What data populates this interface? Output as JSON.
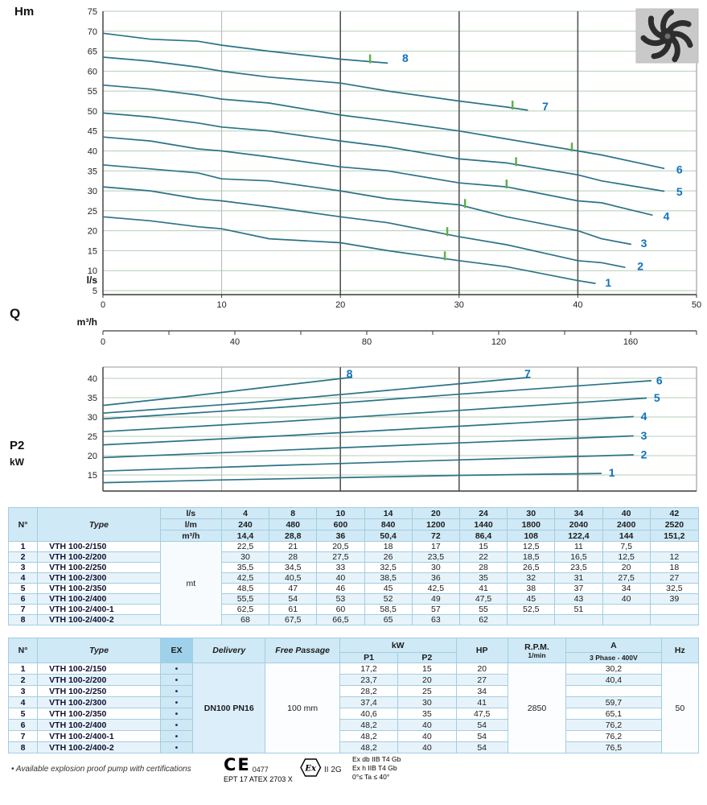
{
  "chart_data": [
    {
      "type": "line",
      "name": "head-flow-curves",
      "ylabel": "Hm",
      "q_label": "Q",
      "xlabel_primary": "l/s",
      "xlabel_secondary": "m³/h",
      "xlim": [
        0,
        50
      ],
      "ylim": [
        5,
        75
      ],
      "ytick_step": 5,
      "xticks": [
        0,
        10,
        20,
        30,
        40,
        50
      ],
      "x2lim": [
        0,
        180
      ],
      "xticks_secondary": [
        0,
        40,
        80,
        120,
        160
      ],
      "grid": true,
      "legend_position": "on-curve-right",
      "curve_color": "#2a7385",
      "grid_color": "#b5cdb5",
      "label_color": "#1173ba",
      "marker_color": "#5fb04c",
      "series": [
        {
          "name": "1",
          "x": [
            0,
            4,
            8,
            10,
            14,
            20,
            24,
            30,
            34,
            40,
            41.5
          ],
          "y": [
            23.5,
            22.5,
            21,
            20.5,
            18,
            17,
            15,
            12.5,
            11,
            7.5,
            6.8
          ],
          "label_x": 42.3,
          "label_y": 7.0
        },
        {
          "name": "2",
          "x": [
            0,
            4,
            8,
            10,
            14,
            20,
            24,
            30,
            34,
            40,
            42,
            44
          ],
          "y": [
            31,
            30,
            28,
            27.5,
            26,
            23.5,
            22,
            18.5,
            16.5,
            12.5,
            12,
            10.8
          ],
          "label_x": 45.0,
          "label_y": 11.2
        },
        {
          "name": "3",
          "x": [
            0,
            4,
            8,
            10,
            14,
            20,
            24,
            30,
            34,
            40,
            42,
            44.5
          ],
          "y": [
            36.5,
            35.5,
            34.5,
            33,
            32.5,
            30,
            28,
            26.5,
            23.5,
            20,
            18,
            16.6
          ],
          "label_x": 45.3,
          "label_y": 16.9
        },
        {
          "name": "4",
          "x": [
            0,
            4,
            8,
            10,
            14,
            20,
            24,
            30,
            34,
            40,
            42,
            46.3
          ],
          "y": [
            43.5,
            42.5,
            40.5,
            40,
            38.5,
            36,
            35,
            32,
            31,
            27.5,
            27,
            23.9
          ],
          "label_x": 47.2,
          "label_y": 23.7
        },
        {
          "name": "5",
          "x": [
            0,
            4,
            8,
            10,
            14,
            20,
            24,
            30,
            34,
            40,
            42,
            47.3
          ],
          "y": [
            49.5,
            48.5,
            47,
            46,
            45,
            42.5,
            41,
            38,
            37,
            34,
            32.5,
            29.9
          ],
          "label_x": 48.3,
          "label_y": 29.8
        },
        {
          "name": "6",
          "x": [
            0,
            4,
            8,
            10,
            14,
            20,
            24,
            30,
            34,
            40,
            42,
            47.3
          ],
          "y": [
            56.5,
            55.5,
            54,
            53,
            52,
            49,
            47.5,
            45,
            43,
            40,
            39,
            35.6
          ],
          "label_x": 48.3,
          "label_y": 35.4
        },
        {
          "name": "7",
          "x": [
            0,
            4,
            8,
            10,
            14,
            20,
            24,
            30,
            34,
            35.8
          ],
          "y": [
            63.5,
            62.5,
            61,
            60,
            58.5,
            57,
            55,
            52.5,
            51,
            50.2
          ],
          "label_x": 37.0,
          "label_y": 51.2
        },
        {
          "name": "8",
          "x": [
            0,
            4,
            8,
            10,
            14,
            20,
            24
          ],
          "y": [
            69.5,
            68,
            67.5,
            66.5,
            65,
            63,
            62
          ],
          "label_x": 25.2,
          "label_y": 63.3
        }
      ],
      "bep_markers": [
        {
          "series": "1",
          "x": 28.8
        },
        {
          "series": "2",
          "x": 29.0
        },
        {
          "series": "3",
          "x": 30.5
        },
        {
          "series": "4",
          "x": 34.0
        },
        {
          "series": "5",
          "x": 34.8
        },
        {
          "series": "6",
          "x": 39.5
        },
        {
          "series": "7",
          "x": 34.5
        },
        {
          "series": "8",
          "x": 22.5
        }
      ]
    },
    {
      "type": "line",
      "name": "power-flow-curves",
      "ylabel": "P2",
      "ylabel_unit": "kW",
      "xlim": [
        0,
        50
      ],
      "ylim": [
        15,
        40
      ],
      "ytick_step": 5,
      "grid": true,
      "curve_color": "#2a7385",
      "grid_color": "#b5cdb5",
      "label_color": "#1173ba",
      "series": [
        {
          "name": "1",
          "x": [
            0,
            10,
            20,
            30,
            42
          ],
          "y": [
            13,
            13.7,
            14.3,
            14.9,
            15.4
          ],
          "label_x": 42.6,
          "label_y": 15.6
        },
        {
          "name": "2",
          "x": [
            0,
            15,
            30,
            44.7
          ],
          "y": [
            16,
            17.5,
            18.9,
            20.2
          ],
          "label_x": 45.3,
          "label_y": 20.3
        },
        {
          "name": "3",
          "x": [
            0,
            15,
            30,
            44.7
          ],
          "y": [
            19.5,
            21.4,
            23.3,
            25.1
          ],
          "label_x": 45.3,
          "label_y": 25.2
        },
        {
          "name": "4",
          "x": [
            0,
            15,
            30,
            44.7
          ],
          "y": [
            22.8,
            25.1,
            27.6,
            30.1
          ],
          "label_x": 45.3,
          "label_y": 30.2
        },
        {
          "name": "5",
          "x": [
            0,
            15,
            30,
            45.8
          ],
          "y": [
            26.2,
            28.8,
            31.7,
            34.9
          ],
          "label_x": 46.4,
          "label_y": 35.0
        },
        {
          "name": "6",
          "x": [
            0,
            15,
            30,
            46.2
          ],
          "y": [
            29.5,
            32.5,
            35.9,
            39.4
          ],
          "label_x": 46.6,
          "label_y": 39.5
        },
        {
          "name": "7",
          "x": [
            0,
            12,
            24,
            36
          ],
          "y": [
            31,
            33.6,
            36.9,
            40.3
          ],
          "label_x": 35.5,
          "label_y": 41.3
        },
        {
          "name": "8",
          "x": [
            0,
            7,
            14,
            21
          ],
          "y": [
            33,
            35.3,
            37.8,
            40.3
          ],
          "label_x": 20.5,
          "label_y": 41.3
        }
      ]
    }
  ],
  "table1": {
    "col_n": "N°",
    "col_type": "Type",
    "body_unit": "mt",
    "unit_rows": [
      {
        "unit": "l/s",
        "values": [
          "4",
          "8",
          "10",
          "14",
          "20",
          "24",
          "30",
          "34",
          "40",
          "42"
        ]
      },
      {
        "unit": "l/m",
        "values": [
          "240",
          "480",
          "600",
          "840",
          "1200",
          "1440",
          "1800",
          "2040",
          "2400",
          "2520"
        ]
      },
      {
        "unit": "m³/h",
        "values": [
          "14,4",
          "28,8",
          "36",
          "50,4",
          "72",
          "86,4",
          "108",
          "122,4",
          "144",
          "151,2"
        ]
      }
    ],
    "rows": [
      {
        "n": "1",
        "type": "VTH 100-2/150",
        "values": [
          "22,5",
          "21",
          "20,5",
          "18",
          "17",
          "15",
          "12,5",
          "11",
          "7,5",
          ""
        ]
      },
      {
        "n": "2",
        "type": "VTH 100-2/200",
        "values": [
          "30",
          "28",
          "27,5",
          "26",
          "23,5",
          "22",
          "18,5",
          "16,5",
          "12,5",
          "12"
        ]
      },
      {
        "n": "3",
        "type": "VTH 100-2/250",
        "values": [
          "35,5",
          "34,5",
          "33",
          "32,5",
          "30",
          "28",
          "26,5",
          "23,5",
          "20",
          "18"
        ]
      },
      {
        "n": "4",
        "type": "VTH 100-2/300",
        "values": [
          "42,5",
          "40,5",
          "40",
          "38,5",
          "36",
          "35",
          "32",
          "31",
          "27,5",
          "27"
        ]
      },
      {
        "n": "5",
        "type": "VTH 100-2/350",
        "values": [
          "48,5",
          "47",
          "46",
          "45",
          "42,5",
          "41",
          "38",
          "37",
          "34",
          "32,5"
        ]
      },
      {
        "n": "6",
        "type": "VTH 100-2/400",
        "values": [
          "55,5",
          "54",
          "53",
          "52",
          "49",
          "47,5",
          "45",
          "43",
          "40",
          "39"
        ]
      },
      {
        "n": "7",
        "type": "VTH 100-2/400-1",
        "values": [
          "62,5",
          "61",
          "60",
          "58,5",
          "57",
          "55",
          "52,5",
          "51",
          "",
          ""
        ]
      },
      {
        "n": "8",
        "type": "VTH 100-2/400-2",
        "values": [
          "68",
          "67,5",
          "66,5",
          "65",
          "63",
          "62",
          "",
          "",
          "",
          ""
        ]
      }
    ]
  },
  "table2": {
    "headers": {
      "n": "N°",
      "type": "Type",
      "ex": "EX",
      "delivery": "Delivery",
      "free_passage": "Free Passage",
      "kw": "kW",
      "p1": "P1",
      "p2": "P2",
      "hp": "HP",
      "rpm": "R.P.M.",
      "rpm_unit": "1/min",
      "a": "A",
      "a_sub": "3 Phase - 400V",
      "hz": "Hz"
    },
    "delivery_value": "DN100 PN16",
    "free_passage_value": "100 mm",
    "rpm_value": "2850",
    "hz_value": "50",
    "rows": [
      {
        "n": "1",
        "type": "VTH 100-2/150",
        "ex": "•",
        "p1": "17,2",
        "p2": "15",
        "hp": "20",
        "a": "30,2"
      },
      {
        "n": "2",
        "type": "VTH 100-2/200",
        "ex": "•",
        "p1": "23,7",
        "p2": "20",
        "hp": "27",
        "a": "40,4"
      },
      {
        "n": "3",
        "type": "VTH 100-2/250",
        "ex": "•",
        "p1": "28,2",
        "p2": "25",
        "hp": "34",
        "a": ""
      },
      {
        "n": "4",
        "type": "VTH 100-2/300",
        "ex": "•",
        "p1": "37,4",
        "p2": "30",
        "hp": "41",
        "a": "59,7"
      },
      {
        "n": "5",
        "type": "VTH 100-2/350",
        "ex": "•",
        "p1": "40,6",
        "p2": "35",
        "hp": "47,5",
        "a": "65,1"
      },
      {
        "n": "6",
        "type": "VTH 100-2/400",
        "ex": "•",
        "p1": "48,2",
        "p2": "40",
        "hp": "54",
        "a": "76,2"
      },
      {
        "n": "7",
        "type": "VTH 100-2/400-1",
        "ex": "•",
        "p1": "48,2",
        "p2": "40",
        "hp": "54",
        "a": "76,2"
      },
      {
        "n": "8",
        "type": "VTH 100-2/400-2",
        "ex": "•",
        "p1": "48,2",
        "p2": "40",
        "hp": "54",
        "a": "76,5"
      }
    ]
  },
  "footer": {
    "note": "• Available explosion proof pump with certifications",
    "ce_mark": "CE",
    "ce_number": "0477",
    "atex_file": "EPT 17 ATEX 2703 X",
    "ex_symbol": "Ex",
    "equipment_group": "II 2G",
    "cert_lines": [
      "Ex db IIB T4 Gb",
      "Ex h IIB T4 Gb",
      "0°≤ Ta ≤ 40°"
    ]
  }
}
